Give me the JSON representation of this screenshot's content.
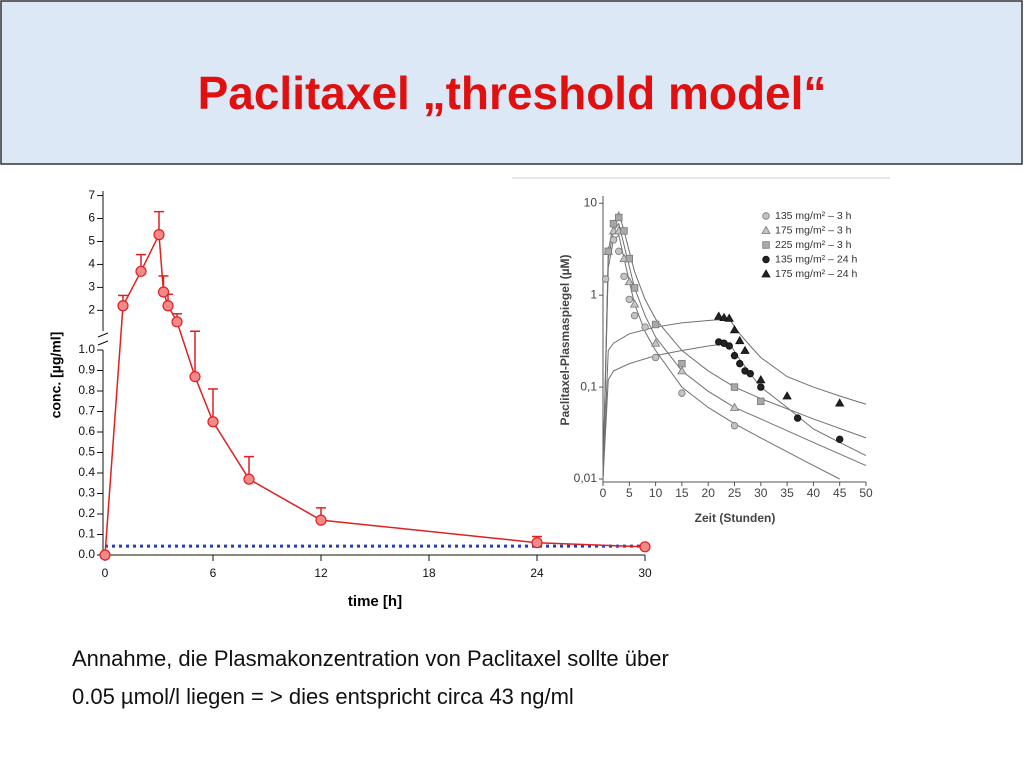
{
  "slide": {
    "title": "Paclitaxel „threshold model“",
    "text": [
      "Annahme, die Plasmakonzentration von Paclitaxel sollte über",
      "0.05 µmol/l liegen = > dies entspricht circa 43 ng/ml"
    ]
  },
  "chart_data": [
    {
      "type": "line",
      "xlabel": "time [h]",
      "ylabel": "conc. [µg/ml]",
      "xlim": [
        0,
        30
      ],
      "xticks": [
        0,
        6,
        12,
        18,
        24,
        30
      ],
      "y_segments": [
        {
          "ylim": [
            0,
            1.0
          ],
          "yticks": [
            {
              "value": 0,
              "label": "0.0"
            },
            0.1,
            0.2,
            0.3,
            0.4,
            0.5,
            0.6,
            0.7,
            0.8,
            0.9,
            {
              "value": 1,
              "label": "1.0"
            }
          ]
        },
        {
          "ylim": [
            1.1,
            7.2
          ],
          "yticks": [
            2,
            3,
            4,
            5,
            6,
            7
          ]
        }
      ],
      "series": [
        {
          "color": "#e02020",
          "marker_fill": "#f28a8a",
          "x": [
            0,
            1,
            2,
            3,
            3.25,
            3.5,
            4,
            5,
            6,
            8,
            12,
            24,
            30
          ],
          "values": [
            0,
            2.2,
            3.7,
            5.3,
            2.8,
            2.2,
            1.5,
            0.87,
            0.65,
            0.37,
            0.17,
            0.06,
            0.04
          ],
          "errors": [
            null,
            0.45,
            0.73,
            1.0,
            0.7,
            0.5,
            0.35,
            0.22,
            0.16,
            0.11,
            0.06,
            0.03,
            null
          ]
        }
      ],
      "reference_lines": [
        {
          "value": 0.043,
          "color": "#1f3fbf"
        }
      ]
    },
    {
      "type": "scatter",
      "xlabel": "Zeit (Stunden)",
      "ylabel": "Paclitaxel-Plasmaspiegel (µM)",
      "log_y": true,
      "xlim": [
        0,
        50
      ],
      "xticks": [
        0,
        5,
        10,
        15,
        20,
        25,
        30,
        35,
        40,
        45,
        50
      ],
      "ylim": [
        0.01,
        12
      ],
      "yticks": [
        10,
        1,
        {
          "value": 0.1,
          "label": "0,1"
        },
        {
          "value": 0.01,
          "label": "0,01"
        }
      ],
      "series": [
        {
          "name": "135 mg/m² – 3 h",
          "marker": "circle",
          "color": "#c4c4c4",
          "x": [
            0.5,
            1,
            2,
            3,
            4,
            5,
            6,
            8,
            10,
            15,
            25
          ],
          "values": [
            1.5,
            3,
            4,
            3,
            1.6,
            0.9,
            0.6,
            0.45,
            0.21,
            0.086,
            0.038
          ]
        },
        {
          "name": "175 mg/m² – 3 h",
          "marker": "triangle",
          "color": "#c4c4c4",
          "x": [
            1,
            2,
            3,
            4,
            5,
            6,
            10,
            15,
            25
          ],
          "values": [
            3,
            5,
            5,
            2.5,
            1.4,
            0.8,
            0.3,
            0.15,
            0.06
          ]
        },
        {
          "name": "225 mg/m² – 3 h",
          "marker": "square",
          "color": "#a8a8a8",
          "x": [
            1,
            2,
            3,
            4,
            5,
            6,
            10,
            15,
            25,
            30
          ],
          "values": [
            3,
            6,
            7,
            5,
            2.5,
            1.2,
            0.48,
            0.18,
            0.1,
            0.07
          ]
        },
        {
          "name": "135 mg/m² – 24 h",
          "marker": "circle",
          "color": "#222222",
          "x": [
            22,
            23,
            24,
            25,
            26,
            27,
            28,
            30,
            37,
            45
          ],
          "values": [
            0.31,
            0.3,
            0.28,
            0.22,
            0.18,
            0.15,
            0.14,
            0.1,
            0.046,
            0.027
          ]
        },
        {
          "name": "175 mg/m² – 24 h",
          "marker": "triangle",
          "color": "#222222",
          "x": [
            22,
            23,
            24,
            25,
            26,
            27,
            30,
            35,
            45
          ],
          "values": [
            0.59,
            0.57,
            0.56,
            0.42,
            0.32,
            0.25,
            0.12,
            0.08,
            0.067
          ]
        }
      ],
      "curve_color": "#707070",
      "curves": [
        {
          "x": [
            0,
            1,
            2,
            3,
            4,
            6,
            8,
            10,
            15,
            20,
            25,
            30,
            40,
            45
          ],
          "values": [
            0.01,
            2,
            4,
            4.5,
            2.5,
            0.8,
            0.4,
            0.25,
            0.1,
            0.06,
            0.04,
            0.028,
            0.014,
            0.01
          ]
        },
        {
          "x": [
            0,
            1,
            2,
            3,
            4,
            6,
            8,
            10,
            15,
            20,
            25,
            30,
            40,
            50
          ],
          "values": [
            0.01,
            2.5,
            5,
            6,
            3.5,
            1.2,
            0.6,
            0.35,
            0.15,
            0.09,
            0.06,
            0.045,
            0.025,
            0.014
          ]
        },
        {
          "x": [
            0,
            1,
            2,
            3,
            4,
            6,
            8,
            10,
            15,
            20,
            25,
            30,
            40,
            50
          ],
          "values": [
            0.01,
            3,
            6,
            8,
            5,
            1.8,
            0.9,
            0.55,
            0.25,
            0.15,
            0.1,
            0.075,
            0.045,
            0.028
          ]
        },
        {
          "x": [
            0,
            1,
            2,
            5,
            10,
            15,
            20,
            24,
            26,
            28,
            30,
            35,
            40,
            45,
            50
          ],
          "values": [
            0.01,
            0.12,
            0.15,
            0.18,
            0.22,
            0.25,
            0.28,
            0.3,
            0.2,
            0.14,
            0.1,
            0.06,
            0.035,
            0.025,
            0.018
          ]
        },
        {
          "x": [
            0,
            1,
            2,
            5,
            10,
            15,
            20,
            24,
            26,
            28,
            30,
            35,
            40,
            45,
            50
          ],
          "values": [
            0.01,
            0.25,
            0.3,
            0.38,
            0.45,
            0.5,
            0.53,
            0.55,
            0.38,
            0.28,
            0.21,
            0.13,
            0.1,
            0.08,
            0.065
          ]
        }
      ]
    }
  ]
}
